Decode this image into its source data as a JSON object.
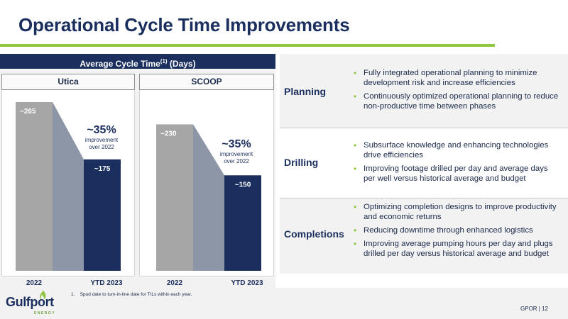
{
  "slide_title": "Operational Cycle Time Improvements",
  "chart_header": {
    "text": "Average Cycle Time",
    "sup": "(1)",
    "suffix": " (Days)"
  },
  "colors": {
    "navy": "#1b2f5e",
    "green": "#8dc63f",
    "bar_gray": "#a6a6a6",
    "connector_gray": "#8c96a6"
  },
  "chart_data": [
    {
      "type": "bar",
      "title": "Utica",
      "categories": [
        "2022",
        "YTD 2023"
      ],
      "values": [
        265,
        175
      ],
      "value_labels": [
        "~265",
        "~175"
      ],
      "annotation": {
        "pct": "~35%",
        "line1": "improvement",
        "line2": "over 2022"
      }
    },
    {
      "type": "bar",
      "title": "SCOOP",
      "categories": [
        "2022",
        "YTD 2023"
      ],
      "values": [
        230,
        150
      ],
      "value_labels": [
        "~230",
        "~150"
      ],
      "annotation": {
        "pct": "~35%",
        "line1": "improvement",
        "line2": "over 2022"
      }
    }
  ],
  "sections": [
    {
      "label": "Planning",
      "bullets": [
        "Fully integrated operational planning to minimize development risk and increase efficiencies",
        "Continuously optimized operational planning to reduce non-productive time between phases"
      ]
    },
    {
      "label": "Drilling",
      "bullets": [
        "Subsurface knowledge and enhancing technologies drive efficiencies",
        "Improving footage drilled per day and average days per well versus historical average and budget"
      ]
    },
    {
      "label": "Completions",
      "bullets": [
        "Optimizing completion designs to improve productivity and economic returns",
        "Reducing downtime through enhanced logistics",
        "Improving average pumping hours per day and plugs drilled per day versus historical average and budget"
      ]
    }
  ],
  "footnote": "1.    Spud date to turn-in-line date for TILs within each year.",
  "page_label": "GPOR | 12",
  "logo": {
    "word": "Gulfport",
    "sub": "ENERGY"
  }
}
